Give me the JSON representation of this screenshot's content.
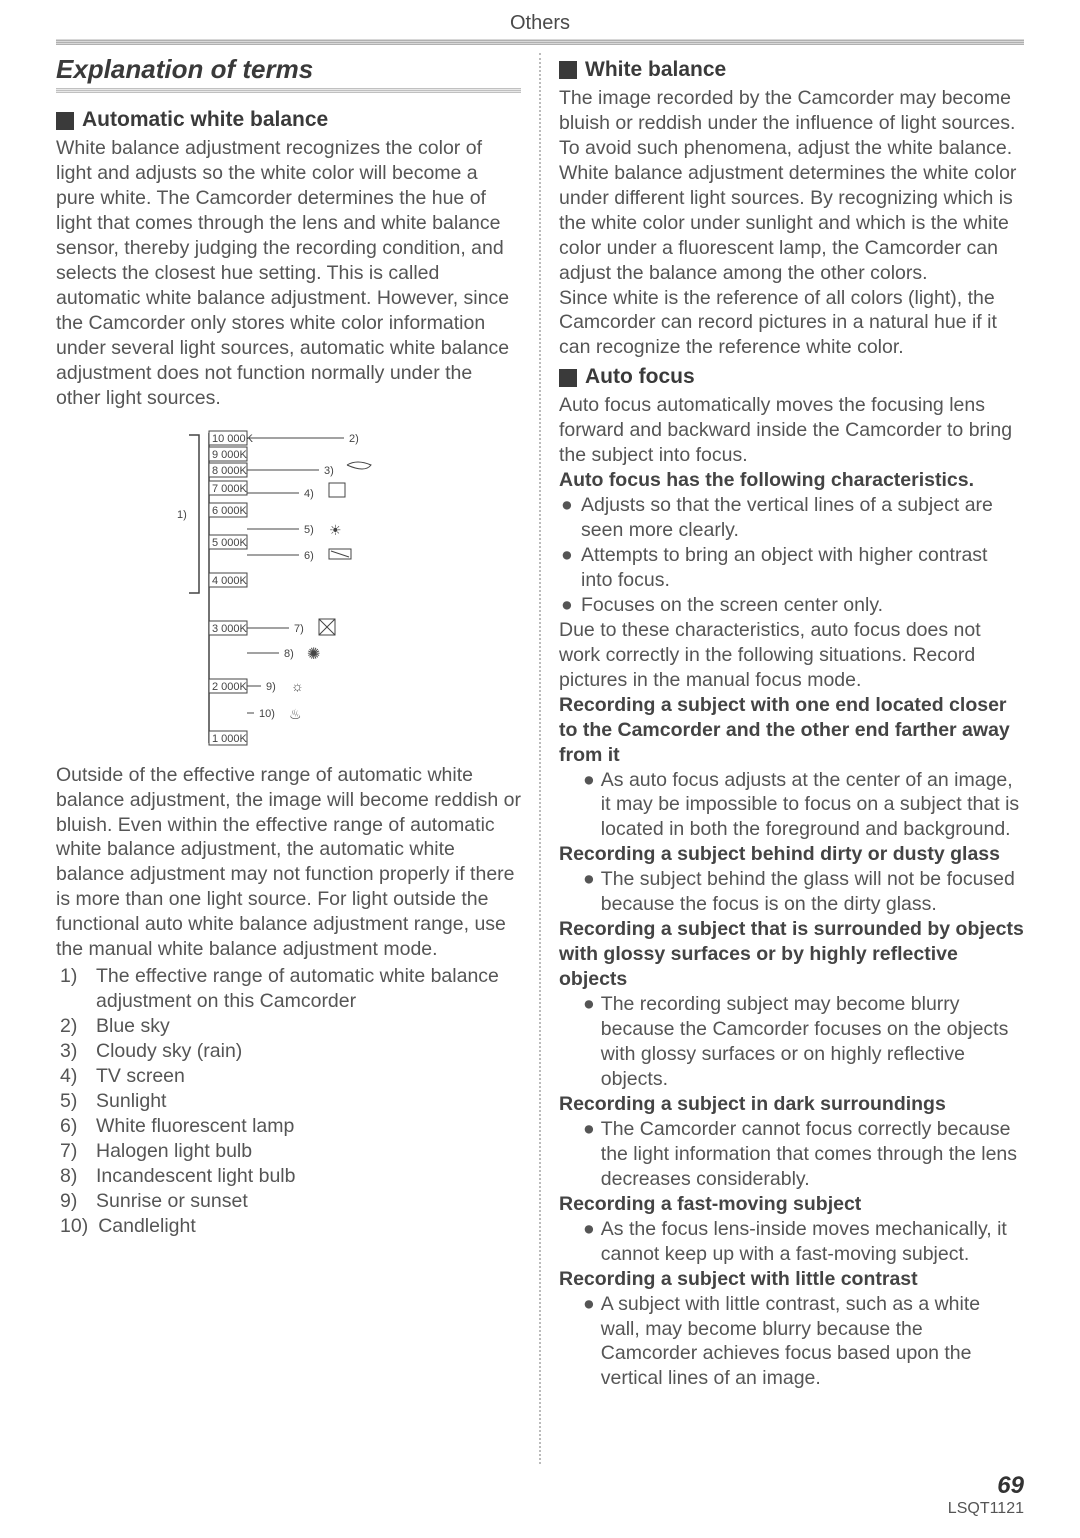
{
  "header": "Others",
  "title": "Explanation of terms",
  "left": {
    "h1": "Automatic white balance",
    "p1": "White balance adjustment recognizes the color of light and adjusts so the white color will become a pure white. The Camcorder determines the hue of light that comes through the lens and white balance sensor, thereby judging the recording condition, and selects the closest hue setting. This is called automatic white balance adjustment. However, since the Camcorder only stores white color information under several light sources, automatic white balance adjustment does not function normally under the other light sources.",
    "p2": "Outside of the effective range of automatic white balance adjustment, the image will become reddish or bluish. Even within the effective range of automatic white balance adjustment, the automatic white balance adjustment may not function properly if there is more than one light source. For light outside the functional auto white balance adjustment range, use the manual white balance adjustment mode.",
    "list": [
      "The effective range of automatic white balance adjustment on this Camcorder",
      "Blue sky",
      "Cloudy sky (rain)",
      "TV screen",
      "Sunlight",
      "White fluorescent lamp",
      "Halogen light bulb",
      "Incandescent light bulb",
      "Sunrise or sunset",
      "Candlelight"
    ],
    "diagram": {
      "ticks": [
        "10 000K",
        "9 000K",
        "8 000K",
        "7 000K",
        "6 000K",
        "5 000K",
        "4 000K",
        "3 000K",
        "2 000K",
        "1 000K"
      ],
      "callouts": [
        "2)",
        "3)",
        "4)",
        "5)",
        "6)",
        "7)",
        "8)",
        "9)",
        "10)"
      ],
      "left_label": "1)"
    }
  },
  "right": {
    "h1": "White balance",
    "p1": "The image recorded by the Camcorder may become bluish or reddish under the influence of light sources. To avoid such phenomena, adjust the white balance.",
    "p2": "White balance adjustment determines the white color under different light sources. By recognizing which is the white color under sunlight and which is the white color under a fluorescent lamp, the Camcorder can adjust the balance among the other colors.",
    "p3": "Since white is the reference of all colors (light), the Camcorder can record pictures in a natural hue if it can recognize the reference white color.",
    "h2": "Auto focus",
    "p4": "Auto focus automatically moves the focusing lens forward and backward inside the Camcorder to bring the subject into focus.",
    "bold1": "Auto focus has the following characteristics.",
    "bullets1": [
      "Adjusts so that the vertical lines of a subject are seen more clearly.",
      "Attempts to bring an object with higher contrast into focus.",
      "Focuses on the screen center only."
    ],
    "p5": "Due to these characteristics, auto focus does not work correctly in the following situations. Record pictures in the manual focus mode.",
    "situations": [
      {
        "h": "Recording a subject with one end located closer to the Camcorder and the other end farther away from it",
        "b": "As auto focus adjusts at the center of an image, it may be impossible to focus on a subject that is located in both the foreground and background."
      },
      {
        "h": "Recording a subject behind dirty or dusty glass",
        "b": "The subject behind the glass will not be focused because the focus is on the dirty glass."
      },
      {
        "h": "Recording a subject that is surrounded by objects with glossy surfaces or by highly reflective objects",
        "b": "The recording subject may become blurry because the Camcorder focuses on the objects with glossy surfaces or on highly reflective objects."
      },
      {
        "h": "Recording a subject in dark surroundings",
        "b": "The Camcorder cannot focus correctly because the light information that comes through the lens decreases considerably."
      },
      {
        "h": "Recording a fast-moving subject",
        "b": "As the focus lens-inside moves mechanically, it cannot keep up with a fast-moving subject."
      },
      {
        "h": "Recording a subject with little contrast",
        "b": "A subject with little contrast, such as a white wall, may become blurry because the Camcorder achieves focus based upon the vertical lines of an image."
      }
    ]
  },
  "footer": {
    "page": "69",
    "code": "LSQT1121"
  }
}
